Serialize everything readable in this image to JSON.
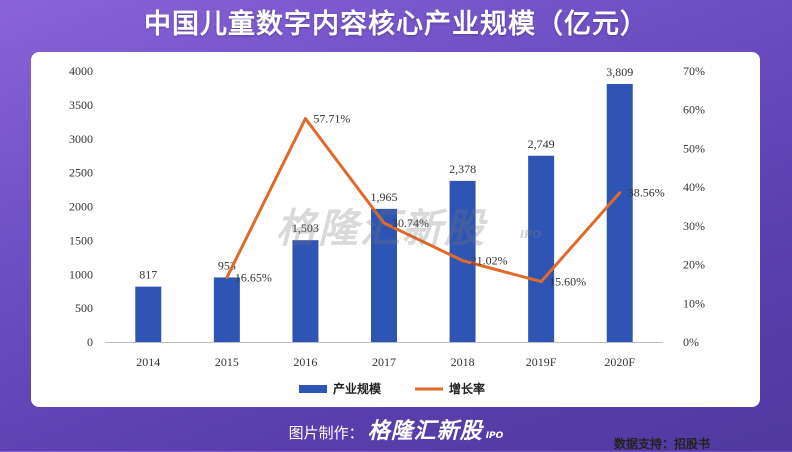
{
  "title": "中国儿童数字内容核心产业规模（亿元）",
  "chart_data": {
    "type": "bar",
    "categories": [
      "2014",
      "2015",
      "2016",
      "2017",
      "2018",
      "2019F",
      "2020F"
    ],
    "series": [
      {
        "name": "产业规模",
        "type": "bar",
        "axis": "left",
        "color": "#2f55b4",
        "values": [
          817,
          953,
          1503,
          1965,
          2378,
          2749,
          3809
        ],
        "labels": [
          "817",
          "953",
          "1,503",
          "1,965",
          "2,378",
          "2,749",
          "3,809"
        ]
      },
      {
        "name": "增长率",
        "type": "line",
        "axis": "right",
        "color": "#e06a2a",
        "values": [
          null,
          16.65,
          57.71,
          30.74,
          21.02,
          15.6,
          38.56
        ],
        "labels": [
          "",
          "16.65%",
          "57.71%",
          "30.74%",
          "21.02%",
          "15.60%",
          "38.56%"
        ]
      }
    ],
    "y_left": {
      "ylim": [
        0,
        4000
      ],
      "ticks": [
        "0",
        "500",
        "1000",
        "1500",
        "2000",
        "2500",
        "3000",
        "3500",
        "4000"
      ]
    },
    "y_right": {
      "ylim": [
        0,
        70
      ],
      "ticks": [
        "0%",
        "10%",
        "20%",
        "30%",
        "40%",
        "50%",
        "60%",
        "70%"
      ]
    },
    "legend_position": "bottom",
    "grid": false
  },
  "source": "数据支持：招股书",
  "watermark": {
    "main": "格隆汇新股",
    "sub": "IPO"
  },
  "footer": {
    "label": "图片制作：",
    "brand": "格隆汇新股",
    "sub": "IPO"
  }
}
